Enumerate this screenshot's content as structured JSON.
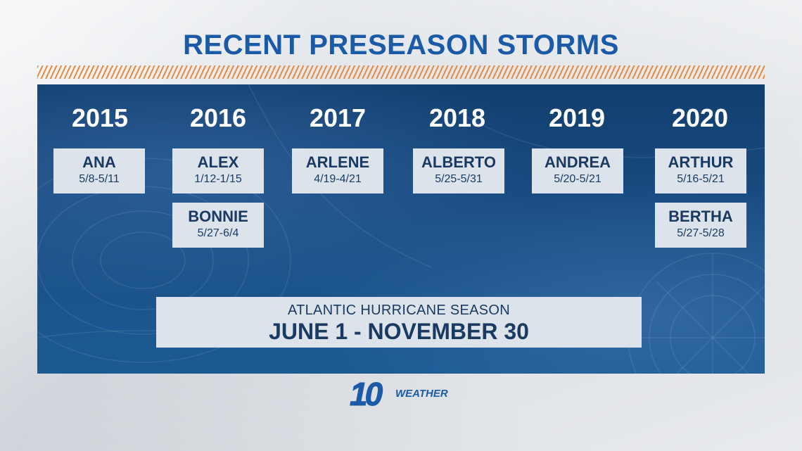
{
  "title": "RECENT PRESEASON STORMS",
  "years": [
    "2015",
    "2016",
    "2017",
    "2018",
    "2019",
    "2020"
  ],
  "storms": [
    {
      "name": "ANA",
      "dates": "5/8-5/11"
    },
    {
      "name": "ALEX",
      "dates": "1/12-1/15"
    },
    {
      "name": "BONNIE",
      "dates": "5/27-6/4"
    },
    {
      "name": "ARLENE",
      "dates": "4/19-4/21"
    },
    {
      "name": "ALBERTO",
      "dates": "5/25-5/31"
    },
    {
      "name": "ANDREA",
      "dates": "5/20-5/21"
    },
    {
      "name": "ARTHUR",
      "dates": "5/16-5/21"
    },
    {
      "name": "BERTHA",
      "dates": "5/27-5/28"
    }
  ],
  "season": {
    "label": "ATLANTIC HURRICANE SEASON",
    "range": "JUNE 1 - NOVEMBER 30"
  },
  "logo": {
    "number": "10",
    "text": "WEATHER"
  },
  "colors": {
    "title": "#1b5aa6",
    "stripe": "#e98a3c",
    "panel": "#1a4f86",
    "card": "#dde3ea",
    "card_text": "#1a3a62"
  }
}
